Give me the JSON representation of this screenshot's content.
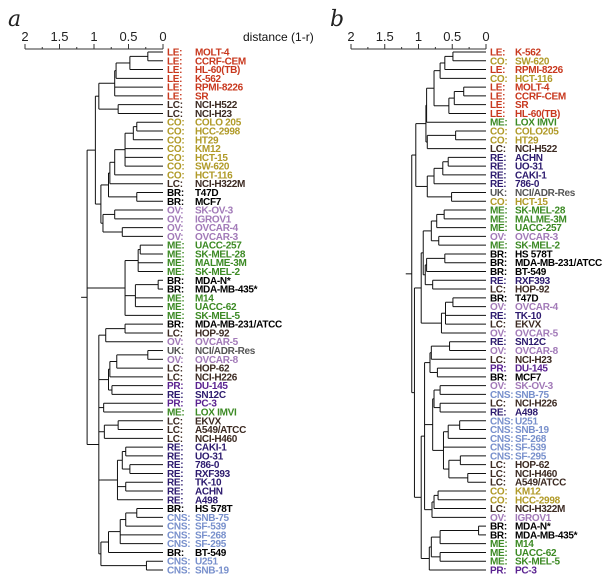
{
  "colors": {
    "LE": "#c8381e",
    "CO": "#b09a28",
    "LC": "#3c2a22",
    "BR": "#000000",
    "OV": "#a27ab8",
    "ME": "#3c8a24",
    "UK": "#555555",
    "PR": "#5a2290",
    "RE": "#2c1a6e",
    "CNS": "#7890cc"
  },
  "panels": [
    {
      "letter": "a",
      "axis": {
        "ticks": [
          "2",
          "1.5",
          "1",
          "0.5",
          "0"
        ],
        "tick_values": [
          2,
          1.5,
          1,
          0.5,
          0
        ],
        "title": "distance (1-r)"
      },
      "leaves": [
        [
          "LE:",
          "MOLT-4"
        ],
        [
          "LE:",
          "CCRF-CEM"
        ],
        [
          "LE:",
          "HL-60(TB)"
        ],
        [
          "LE:",
          "K-562"
        ],
        [
          "LE:",
          "RPMI-8226"
        ],
        [
          "LE:",
          "SR"
        ],
        [
          "LC:",
          "NCI-H522"
        ],
        [
          "LC:",
          "NCI-H23"
        ],
        [
          "CO:",
          "COLO 205"
        ],
        [
          "CO:",
          "HCC-2998"
        ],
        [
          "CO:",
          "HT29"
        ],
        [
          "CO:",
          "KM12"
        ],
        [
          "CO:",
          "HCT-15"
        ],
        [
          "CO:",
          "SW-620"
        ],
        [
          "CO:",
          "HCT-116"
        ],
        [
          "LC:",
          "NCI-H322M"
        ],
        [
          "BR:",
          "T47D"
        ],
        [
          "BR:",
          "MCF7"
        ],
        [
          "OV:",
          "SK-OV-3"
        ],
        [
          "OV:",
          "IGROV1"
        ],
        [
          "OV:",
          "OVCAR-4"
        ],
        [
          "OV:",
          "OVCAR-3"
        ],
        [
          "ME:",
          "UACC-257"
        ],
        [
          "ME:",
          "SK-MEL-28"
        ],
        [
          "ME:",
          "MALME-3M"
        ],
        [
          "ME:",
          "SK-MEL-2"
        ],
        [
          "BR:",
          "MDA-N*"
        ],
        [
          "BR:",
          "MDA-MB-435*"
        ],
        [
          "ME:",
          "M14"
        ],
        [
          "ME:",
          "UACC-62"
        ],
        [
          "ME:",
          "SK-MEL-5"
        ],
        [
          "BR:",
          "MDA-MB-231/ATCC"
        ],
        [
          "LC:",
          "HOP-92"
        ],
        [
          "OV:",
          "OVCAR-5"
        ],
        [
          "UK:",
          "NCI/ADR-Res"
        ],
        [
          "OV:",
          "OVCAR-8"
        ],
        [
          "LC:",
          "HOP-62"
        ],
        [
          "LC:",
          "NCI-H226"
        ],
        [
          "PR:",
          "DU-145"
        ],
        [
          "RE:",
          "SN12C"
        ],
        [
          "PR:",
          "PC-3"
        ],
        [
          "ME:",
          "LOX IMVI"
        ],
        [
          "LC:",
          "EKVX"
        ],
        [
          "LC:",
          "A549/ATCC"
        ],
        [
          "LC:",
          "NCI-H460"
        ],
        [
          "RE:",
          "CAKI-1"
        ],
        [
          "RE:",
          "UO-31"
        ],
        [
          "RE:",
          "786-0"
        ],
        [
          "RE:",
          "RXF393"
        ],
        [
          "RE:",
          "TK-10"
        ],
        [
          "RE:",
          "ACHN"
        ],
        [
          "RE:",
          "A498"
        ],
        [
          "BR:",
          "HS 578T"
        ],
        [
          "CNS:",
          "SNB-75"
        ],
        [
          "CNS:",
          "SF-539"
        ],
        [
          "CNS:",
          "SF-268"
        ],
        [
          "CNS:",
          "SF-295"
        ],
        [
          "BR:",
          "BT-549"
        ],
        [
          "CNS:",
          "U251"
        ],
        [
          "CNS:",
          "SNB-19"
        ]
      ],
      "tree": [
        1.1,
        [
          0.98,
          [
            0.93,
            [
              0.7,
              [
                0.68,
                [
                  0.48,
                  [
                    0.22,
                    0,
                    1
                  ],
                  2
                ],
                3
              ],
              4,
              5
            ],
            [
              0.65,
              6,
              7
            ]
          ],
          [
            0.9,
            [
              0.79,
              [
                0.77,
                [
                  0.7,
                  [
                    0.55,
                    [
                      0.43,
                      [
                        0.38,
                        8,
                        9
                      ],
                      10
                    ],
                    11,
                    12,
                    13
                  ],
                  14
                ],
                15
              ],
              [
                0.38,
                16,
                17
              ]
            ],
            [
              0.87,
              [
                0.7,
                18,
                19
              ],
              [
                0.59,
                20,
                21
              ]
            ]
          ]
        ],
        [
          0.55,
          [
            0.36,
            [
              0.33,
              22,
              23
            ],
            24,
            25
          ],
          [
            0.4,
            [
              0.07,
              26,
              27
            ],
            28,
            29
          ],
          30
        ],
        [
          0.93,
          [
            0.83,
            [
              0.55,
              31,
              32
            ],
            33
          ],
          [
            0.79,
            [
              0.77,
              [
                0.67,
                [
                  0.22,
                  34,
                  35
                ],
                36
              ],
              37
            ],
            [
              0.74,
              38,
              39
            ]
          ],
          [
            0.86,
            40,
            41
          ],
          [
            0.85,
            [
              0.65,
              42,
              43
            ],
            44
          ],
          [
            0.9,
            [
              0.66,
              [
                0.59,
                [
                  0.54,
                  45,
                  46
                ],
                [
                  0.48,
                  47,
                  48
                ]
              ],
              [
                0.54,
                49,
                50
              ],
              51
            ]
          ],
          [
            0.9,
            [
              0.79,
              [
                0.62,
                [
                  0.54,
                  [
                    0.38,
                    52,
                    53
                  ],
                  54
                ],
                55,
                56
              ],
              57
            ],
            [
              0.24,
              58,
              59
            ]
          ]
        ]
      ]
    },
    {
      "letter": "b",
      "axis": {
        "ticks": [
          "2",
          "1.5",
          "1",
          "0.5",
          "0"
        ],
        "tick_values": [
          2,
          1.5,
          1,
          0.5,
          0
        ],
        "title": ""
      },
      "leaves": [
        [
          "LE:",
          "K-562"
        ],
        [
          "CO:",
          "SW-620"
        ],
        [
          "LE:",
          "RPMI-8226"
        ],
        [
          "CO:",
          "HCT-116"
        ],
        [
          "LE:",
          "MOLT-4"
        ],
        [
          "LE:",
          "CCRF-CEM"
        ],
        [
          "LE:",
          "SR"
        ],
        [
          "LE:",
          "HL-60(TB)"
        ],
        [
          "ME:",
          "LOX IMVI"
        ],
        [
          "CO:",
          "COLO205"
        ],
        [
          "CO:",
          "HT29"
        ],
        [
          "LC:",
          "NCI-H522"
        ],
        [
          "RE:",
          "ACHN"
        ],
        [
          "RE:",
          "UO-31"
        ],
        [
          "RE:",
          "CAKI-1"
        ],
        [
          "RE:",
          "786-0"
        ],
        [
          "UK:",
          "NCI/ADR-Res"
        ],
        [
          "CO:",
          "HCT-15"
        ],
        [
          "ME:",
          "SK-MEL-28"
        ],
        [
          "ME:",
          "MALME-3M"
        ],
        [
          "ME:",
          "UACC-257"
        ],
        [
          "OV:",
          "OVCAR-3"
        ],
        [
          "ME:",
          "SK-MEL-2"
        ],
        [
          "BR:",
          "HS 578T"
        ],
        [
          "BR:",
          "MDA-MB-231/ATCC"
        ],
        [
          "BR:",
          "BT-549"
        ],
        [
          "RE:",
          "RXF393"
        ],
        [
          "LC:",
          "HOP-92"
        ],
        [
          "BR:",
          "T47D"
        ],
        [
          "OV:",
          "OVCAR-4"
        ],
        [
          "RE:",
          "TK-10"
        ],
        [
          "LC:",
          "EKVX"
        ],
        [
          "OV:",
          "OVCAR-5"
        ],
        [
          "RE:",
          "SN12C"
        ],
        [
          "OV:",
          "OVCAR-8"
        ],
        [
          "LC:",
          "NCI-H23"
        ],
        [
          "PR:",
          "DU-145"
        ],
        [
          "BR:",
          "MCF7"
        ],
        [
          "OV:",
          "SK-OV-3"
        ],
        [
          "CNS:",
          "SNB-75"
        ],
        [
          "LC:",
          "NCI-H226"
        ],
        [
          "RE:",
          "A498"
        ],
        [
          "CNS:",
          "U251"
        ],
        [
          "CNS:",
          "SNB-19"
        ],
        [
          "CNS:",
          "SF-268"
        ],
        [
          "CNS:",
          "SF-539"
        ],
        [
          "CNS:",
          "SF-295"
        ],
        [
          "LC:",
          "HOP-62"
        ],
        [
          "LC:",
          "NCI-H460"
        ],
        [
          "LC:",
          "A549/ATCC"
        ],
        [
          "CO:",
          "KM12"
        ],
        [
          "CO:",
          "HCC-2998"
        ],
        [
          "LC:",
          "NCI-H322M"
        ],
        [
          "OV:",
          "IGROV1"
        ],
        [
          "BR:",
          "MDA-N*"
        ],
        [
          "BR:",
          "MDA-MB-435*"
        ],
        [
          "ME:",
          "M14"
        ],
        [
          "ME:",
          "UACC-62"
        ],
        [
          "ME:",
          "SK-MEL-5"
        ],
        [
          "PR:",
          "PC-3"
        ]
      ],
      "tree": [
        1.1,
        [
          1.04,
          [
            0.89,
            [
              0.88,
              [
                0.77,
                [
                  0.68,
                  [
                    0.61,
                    [
                      0.49,
                      0,
                      1
                    ],
                    2
                  ],
                  3
                ],
                [
                  0.55,
                  [
                    0.47,
                    [
                      0.33,
                      4,
                      5
                    ],
                    6
                  ],
                  7
                ]
              ],
              8
            ],
            [
              0.87,
              [
                0.45,
                9,
                10
              ],
              11
            ]
          ],
          [
            0.87,
            [
              0.77,
              [
                0.64,
                [
                  0.56,
                  12,
                  13
                ],
                14
              ],
              15
            ],
            [
              0.51,
              16,
              17
            ]
          ]
        ],
        [
          1.06,
          [
            0.96,
            [
              0.93,
              [
                0.81,
                [
                  0.73,
                  [
                    0.62,
                    18,
                    19
                  ],
                  20
                ],
                [
                  0.7,
                  21,
                  22
                ]
              ],
              [
                0.9,
                [
                  0.88,
                  [
                    0.61,
                    23,
                    24
                  ],
                  25
                ],
                [
                  0.79,
                  26,
                  27
                ]
              ]
            ],
            [
              0.66,
              [
                0.6,
                [
                  0.49,
                  28,
                  29
                ],
                30,
                31
              ],
              32
            ]
          ],
          [
            0.96,
            [
              0.91,
              [
                0.83,
                [
                  0.81,
                  [
                    0.54,
                    33,
                    34
                  ],
                  35
                ],
                [
                  0.72,
                  36,
                  37
                ]
              ],
              [
                0.79,
                [
                  0.77,
                  [
                    0.68,
                    38,
                    39
                  ],
                  [
                    0.68,
                    40,
                    41
                  ]
                ],
                [
                  0.63,
                  [
                    0.56,
                    [
                      0.39,
                      42,
                      43
                    ],
                    44
                  ],
                  45,
                  [
                    0.55,
                    [
                      0.38,
                      46,
                      47
                    ],
                    [
                      0.27,
                      48,
                      49
                    ]
                  ]
                ]
              ],
              [
                0.8,
                [
                  0.77,
                  [
                    0.71,
                    50,
                    51
                  ],
                  52
                ],
                53
              ]
            ],
            [
              0.84,
              [
                0.81,
                [
                  0.68,
                  [
                    0.11,
                    54,
                    55
                  ],
                  56
                ],
                [
                  0.68,
                  57,
                  58
                ]
              ],
              59
            ]
          ]
        ]
      ]
    }
  ]
}
